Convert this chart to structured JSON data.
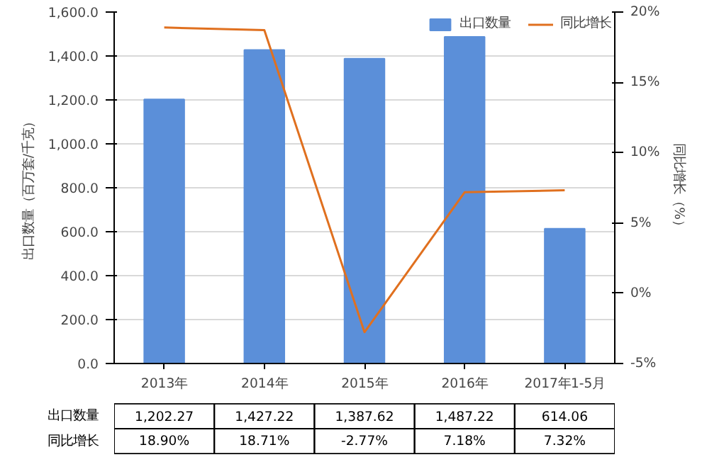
{
  "chart_data": {
    "type": "bar",
    "categories": [
      "2013年",
      "2014年",
      "2015年",
      "2016年",
      "2017年1-5月"
    ],
    "ylabel": "出口数量（百万套/千克）",
    "y2label": "同比增长（%）",
    "ylim": [
      0,
      1600
    ],
    "yticks": [
      {
        "value": 0,
        "label": "0.0"
      },
      {
        "value": 200,
        "label": "200.0"
      },
      {
        "value": 400,
        "label": "400.0"
      },
      {
        "value": 600,
        "label": "600.0"
      },
      {
        "value": 800,
        "label": "800.0"
      },
      {
        "value": 1000,
        "label": "1,000.0"
      },
      {
        "value": 1200,
        "label": "1,200.0"
      },
      {
        "value": 1400,
        "label": "1,400.0"
      },
      {
        "value": 1600,
        "label": "1,600.0"
      }
    ],
    "y2lim": [
      -5,
      20
    ],
    "y2ticks": [
      {
        "value": -5,
        "label": "-5%"
      },
      {
        "value": 0,
        "label": "0%"
      },
      {
        "value": 5,
        "label": "5%"
      },
      {
        "value": 10,
        "label": "10%"
      },
      {
        "value": 15,
        "label": "15%"
      },
      {
        "value": 20,
        "label": "20%"
      }
    ],
    "grid": "y",
    "legend": "top right",
    "series": [
      {
        "name": "出口数量",
        "color": "#5b8fd9",
        "values": [
          1202.27,
          1427.22,
          1387.62,
          1487.22,
          614.06
        ],
        "value_labels": [
          "1,202.27",
          "1,427.22",
          "1,387.62",
          "1,487.22",
          "614.06"
        ]
      },
      {
        "name": "同比增长",
        "type": "line",
        "axis": "y2",
        "color": "#e0701f",
        "values": [
          18.9,
          18.71,
          -2.77,
          7.18,
          7.32
        ],
        "value_labels": [
          "18.90%",
          "18.71%",
          "-2.77%",
          "7.18%",
          "7.32%"
        ]
      }
    ]
  }
}
